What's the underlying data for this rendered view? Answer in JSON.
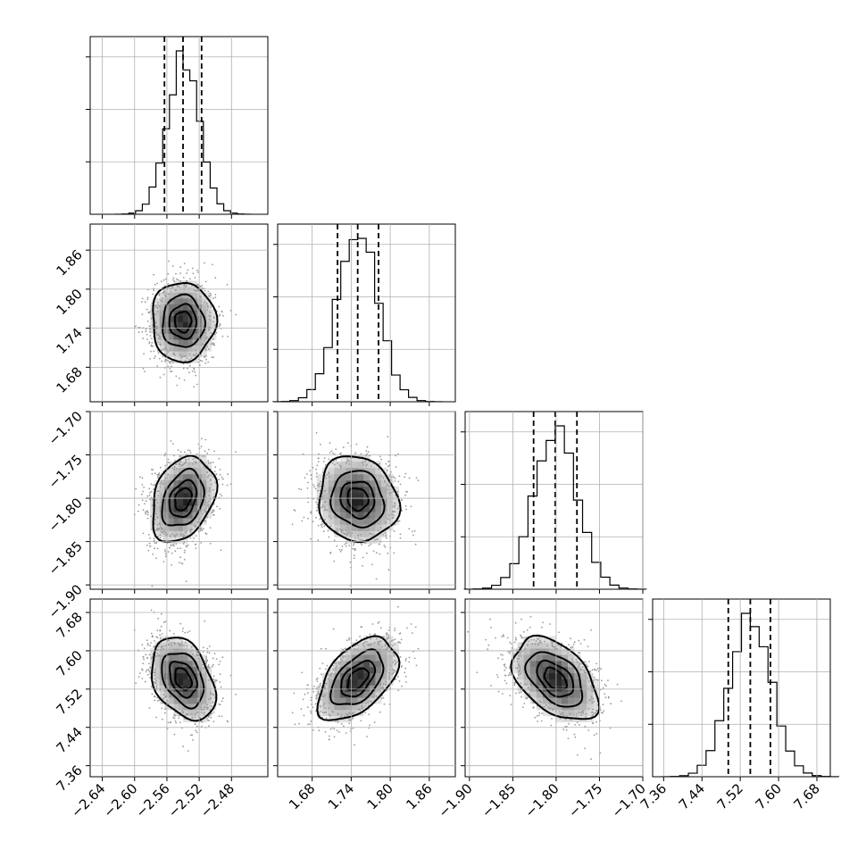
{
  "chart_data": {
    "type": "corner",
    "title": "",
    "parameters": [
      {
        "index": 0,
        "range": [
          -2.655,
          -2.435
        ],
        "ticks": [
          "−2.64",
          "−2.60",
          "−2.56",
          "−2.52",
          "−2.48"
        ],
        "tick_values": [
          -2.64,
          -2.6,
          -2.56,
          -2.52,
          -2.48
        ],
        "median": -2.54,
        "quantile_low": -2.563,
        "quantile_high": -2.517,
        "std": 0.02
      },
      {
        "index": 1,
        "range": [
          1.627,
          1.9
        ],
        "ticks": [
          "1.68",
          "1.74",
          "1.80",
          "1.86"
        ],
        "tick_values": [
          1.68,
          1.74,
          1.8,
          1.86
        ],
        "median": 1.75,
        "quantile_low": 1.719,
        "quantile_high": 1.782,
        "std": 0.031
      },
      {
        "index": 2,
        "range": [
          -1.905,
          -1.7
        ],
        "ticks": [
          "−1.90",
          "−1.85",
          "−1.80",
          "−1.75",
          "−1.70"
        ],
        "tick_values": [
          -1.9,
          -1.85,
          -1.8,
          -1.75,
          -1.7
        ],
        "median": -1.801,
        "quantile_low": -1.826,
        "quantile_high": -1.776,
        "std": 0.025
      },
      {
        "index": 3,
        "range": [
          7.337,
          7.708
        ],
        "ticks": [
          "7.36",
          "7.44",
          "7.52",
          "7.60",
          "7.68"
        ],
        "tick_values": [
          7.36,
          7.44,
          7.52,
          7.6,
          7.68
        ],
        "median": 7.541,
        "quantile_low": 7.495,
        "quantile_high": 7.583,
        "std": 0.044
      }
    ],
    "correlations": {
      "1-0": 0.0,
      "2-0": 0.3,
      "2-1": -0.1,
      "3-0": -0.35,
      "3-1": 0.5,
      "3-2": -0.45
    },
    "hist_bins": 20,
    "contour_levels_sigma": [
      0.5,
      1.0,
      1.5,
      2.0
    ],
    "grid": true,
    "legend": "none"
  }
}
